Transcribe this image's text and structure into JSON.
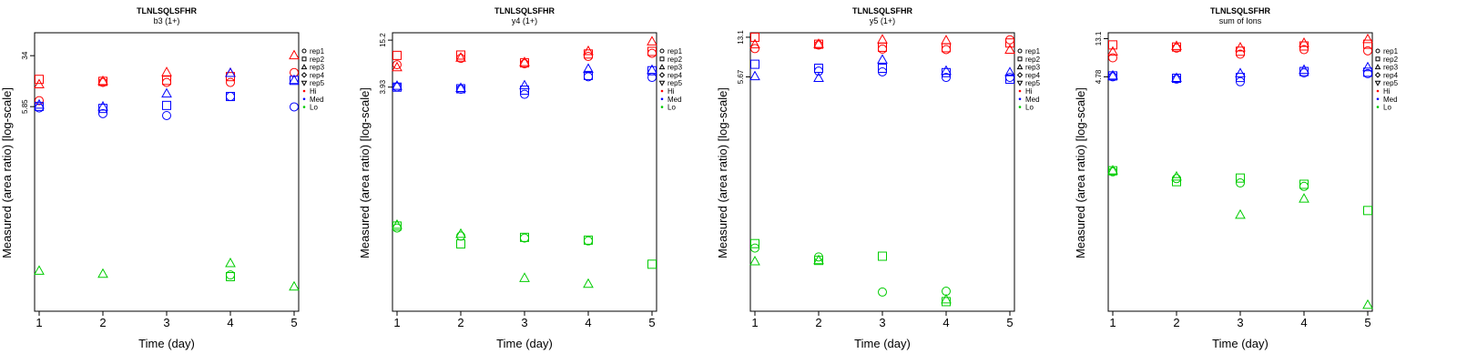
{
  "chart_data": [
    {
      "type": "scatter",
      "title": "TLNLSQLSFHR",
      "subtitle": "b3 (1+)",
      "xlabel": "Time (day)",
      "ylabel": "Measured (area ratio) [log-scale]",
      "x_ticks": [
        "1",
        "2",
        "3",
        "4",
        "5"
      ],
      "y_ticks": [
        {
          "label": "34",
          "value": 34
        },
        {
          "label": "5.85",
          "value": 5.85
        }
      ],
      "log_scale_y": true,
      "ylim": [
        0.005,
        75
      ],
      "grid": false,
      "legend_position": "right",
      "legend": {
        "shapes": [
          {
            "label": "rep1",
            "marker": "circle"
          },
          {
            "label": "rep2",
            "marker": "square"
          },
          {
            "label": "rep3",
            "marker": "triangle-up"
          },
          {
            "label": "rep4",
            "marker": "diamond"
          },
          {
            "label": "rep5",
            "marker": "triangle-down"
          }
        ],
        "groups": [
          {
            "label": "Hi",
            "color": "#ff0000"
          },
          {
            "label": "Med",
            "color": "#0000ff"
          },
          {
            "label": "Lo",
            "color": "#00cc00"
          }
        ]
      },
      "series": [
        {
          "group": "Hi",
          "rep": "rep1",
          "x": [
            1,
            2,
            3,
            4,
            5
          ],
          "y": [
            7.2,
            13.5,
            13.5,
            13.5,
            19
          ]
        },
        {
          "group": "Hi",
          "rep": "rep2",
          "x": [
            1,
            2,
            3,
            4,
            5
          ],
          "y": [
            15,
            14,
            14.5,
            16.5,
            null
          ]
        },
        {
          "group": "Hi",
          "rep": "rep3",
          "x": [
            1,
            2,
            3,
            4,
            5
          ],
          "y": [
            12.5,
            14,
            19,
            18.5,
            34
          ]
        },
        {
          "group": "Med",
          "rep": "rep1",
          "x": [
            1,
            2,
            3,
            4,
            5
          ],
          "y": [
            5.6,
            4.6,
            4.3,
            8.3,
            5.8
          ]
        },
        {
          "group": "Med",
          "rep": "rep2",
          "x": [
            1,
            2,
            3,
            4,
            5
          ],
          "y": [
            5.9,
            5.5,
            6.1,
            8.3,
            14.5
          ]
        },
        {
          "group": "Med",
          "rep": "rep3",
          "x": [
            1,
            2,
            3,
            4,
            5
          ],
          "y": [
            6.2,
            5.8,
            9.1,
            18.5,
            14.5
          ]
        },
        {
          "group": "Lo",
          "rep": "rep1",
          "x": [
            1,
            2,
            3,
            4,
            5
          ],
          "y": [
            null,
            null,
            null,
            0.0175,
            null
          ]
        },
        {
          "group": "Lo",
          "rep": "rep2",
          "x": [
            1,
            2,
            3,
            4,
            5
          ],
          "y": [
            null,
            null,
            null,
            0.0165,
            null
          ]
        },
        {
          "group": "Lo",
          "rep": "rep3",
          "x": [
            1,
            2,
            3,
            4,
            5
          ],
          "y": [
            0.02,
            0.018,
            null,
            0.026,
            0.0116
          ]
        }
      ]
    },
    {
      "type": "scatter",
      "title": "TLNLSQLSFHR",
      "subtitle": "y4 (1+)",
      "xlabel": "Time (day)",
      "ylabel": "Measured (area ratio) [log-scale]",
      "x_ticks": [
        "1",
        "2",
        "3",
        "4",
        "5"
      ],
      "y_ticks": [
        {
          "label": "15.2",
          "value": 15.2
        },
        {
          "label": "3.93",
          "value": 3.93
        }
      ],
      "log_scale_y": true,
      "ylim": [
        0.0062,
        18.8
      ],
      "grid": false,
      "legend_position": "right",
      "legend": {
        "shapes": [
          {
            "label": "rep1",
            "marker": "circle"
          },
          {
            "label": "rep2",
            "marker": "square"
          },
          {
            "label": "rep3",
            "marker": "triangle-up"
          },
          {
            "label": "rep4",
            "marker": "diamond"
          },
          {
            "label": "rep5",
            "marker": "triangle-down"
          }
        ],
        "groups": [
          {
            "label": "Hi",
            "color": "#ff0000"
          },
          {
            "label": "Med",
            "color": "#0000ff"
          },
          {
            "label": "Lo",
            "color": "#00cc00"
          }
        ]
      },
      "series": [
        {
          "group": "Hi",
          "rep": "rep1",
          "x": [
            1,
            2,
            3,
            4,
            5
          ],
          "y": [
            7.5,
            9,
            7.7,
            9.5,
            10.4
          ]
        },
        {
          "group": "Hi",
          "rep": "rep2",
          "x": [
            1,
            2,
            3,
            4,
            5
          ],
          "y": [
            9.8,
            9.9,
            7.9,
            10.2,
            11
          ]
        },
        {
          "group": "Hi",
          "rep": "rep3",
          "x": [
            1,
            2,
            3,
            4,
            5
          ],
          "y": [
            6.9,
            9.1,
            8,
            11,
            14.5
          ]
        },
        {
          "group": "Med",
          "rep": "rep1",
          "x": [
            1,
            2,
            3,
            4,
            5
          ],
          "y": [
            3.95,
            3.7,
            3.2,
            5.3,
            5.2
          ]
        },
        {
          "group": "Med",
          "rep": "rep2",
          "x": [
            1,
            2,
            3,
            4,
            5
          ],
          "y": [
            3.93,
            3.75,
            3.6,
            5.5,
            6.3
          ]
        },
        {
          "group": "Med",
          "rep": "rep3",
          "x": [
            1,
            2,
            3,
            4,
            5
          ],
          "y": [
            4.05,
            3.8,
            4.1,
            6.6,
            6.4
          ]
        },
        {
          "group": "Lo",
          "rep": "rep1",
          "x": [
            1,
            2,
            3,
            4,
            5
          ],
          "y": [
            0.068,
            0.054,
            0.051,
            0.047,
            null
          ]
        },
        {
          "group": "Lo",
          "rep": "rep2",
          "x": [
            1,
            2,
            3,
            4,
            5
          ],
          "y": [
            0.072,
            0.043,
            0.052,
            0.048,
            0.024
          ]
        },
        {
          "group": "Lo",
          "rep": "rep3",
          "x": [
            1,
            2,
            3,
            4,
            5
          ],
          "y": [
            0.074,
            0.057,
            0.016,
            0.0135,
            null
          ]
        }
      ]
    },
    {
      "type": "scatter",
      "title": "TLNLSQLSFHR",
      "subtitle": "y5 (1+)",
      "xlabel": "Time (day)",
      "ylabel": "Measured (area ratio) [log-scale]",
      "x_ticks": [
        "1",
        "2",
        "3",
        "4",
        "5"
      ],
      "y_ticks": [
        {
          "label": "13.1",
          "value": 13.1
        },
        {
          "label": "5.67",
          "value": 5.67
        }
      ],
      "log_scale_y": true,
      "ylim": [
        0.04,
        14.4
      ],
      "grid": false,
      "legend_position": "right",
      "legend": {
        "shapes": [
          {
            "label": "rep1",
            "marker": "circle"
          },
          {
            "label": "rep2",
            "marker": "square"
          },
          {
            "label": "rep3",
            "marker": "triangle-up"
          },
          {
            "label": "rep4",
            "marker": "diamond"
          },
          {
            "label": "rep5",
            "marker": "triangle-down"
          }
        ],
        "groups": [
          {
            "label": "Hi",
            "color": "#ff0000"
          },
          {
            "label": "Med",
            "color": "#0000ff"
          },
          {
            "label": "Lo",
            "color": "#00cc00"
          }
        ]
      },
      "series": [
        {
          "group": "Hi",
          "rep": "rep1",
          "x": [
            1,
            2,
            3,
            4,
            5
          ],
          "y": [
            10.3,
            11.1,
            10.2,
            10.1,
            12.4
          ]
        },
        {
          "group": "Hi",
          "rep": "rep2",
          "x": [
            1,
            2,
            3,
            4,
            5
          ],
          "y": [
            13.1,
            11.3,
            10.6,
            10.5,
            11.6
          ]
        },
        {
          "group": "Hi",
          "rep": "rep3",
          "x": [
            1,
            2,
            3,
            4,
            5
          ],
          "y": [
            11.2,
            11.3,
            12.4,
            12.2,
            10
          ]
        },
        {
          "group": "Med",
          "rep": "rep1",
          "x": [
            1,
            2,
            3,
            4,
            5
          ],
          "y": [
            null,
            6.4,
            6.3,
            5.6,
            5.6
          ]
        },
        {
          "group": "Med",
          "rep": "rep2",
          "x": [
            1,
            2,
            3,
            4,
            5
          ],
          "y": [
            7.4,
            6.8,
            6.8,
            6.2,
            5.4
          ]
        },
        {
          "group": "Med",
          "rep": "rep3",
          "x": [
            1,
            2,
            3,
            4,
            5
          ],
          "y": [
            5.7,
            5.5,
            8.1,
            6.4,
            6.2
          ]
        },
        {
          "group": "Lo",
          "rep": "rep1",
          "x": [
            1,
            2,
            3,
            4,
            5
          ],
          "y": [
            0.152,
            0.126,
            0.06,
            0.061,
            null
          ]
        },
        {
          "group": "Lo",
          "rep": "rep2",
          "x": [
            1,
            2,
            3,
            4,
            5
          ],
          "y": [
            0.167,
            0.117,
            0.128,
            0.049,
            null
          ]
        },
        {
          "group": "Lo",
          "rep": "rep3",
          "x": [
            1,
            2,
            3,
            4,
            5
          ],
          "y": [
            0.114,
            0.117,
            null,
            0.051,
            null
          ]
        }
      ]
    },
    {
      "type": "scatter",
      "title": "TLNLSQLSFHR",
      "subtitle": "sum of Ions",
      "xlabel": "Time (day)",
      "ylabel": "Measured (area ratio) [log-scale]",
      "x_ticks": [
        "1",
        "2",
        "3",
        "4",
        "5"
      ],
      "y_ticks": [
        {
          "label": "13.1",
          "value": 13.1
        },
        {
          "label": "4.78",
          "value": 4.78
        }
      ],
      "log_scale_y": true,
      "ylim": [
        0.0098,
        15.3
      ],
      "grid": false,
      "legend_position": "right",
      "legend": {
        "shapes": [
          {
            "label": "rep1",
            "marker": "circle"
          },
          {
            "label": "rep2",
            "marker": "square"
          },
          {
            "label": "rep3",
            "marker": "triangle-up"
          },
          {
            "label": "rep4",
            "marker": "diamond"
          },
          {
            "label": "rep5",
            "marker": "triangle-down"
          }
        ],
        "groups": [
          {
            "label": "Hi",
            "color": "#ff0000"
          },
          {
            "label": "Med",
            "color": "#0000ff"
          },
          {
            "label": "Lo",
            "color": "#00cc00"
          }
        ]
      },
      "series": [
        {
          "group": "Hi",
          "rep": "rep1",
          "x": [
            1,
            2,
            3,
            4,
            5
          ],
          "y": [
            7.9,
            10.2,
            8.7,
            9.8,
            9.5
          ]
        },
        {
          "group": "Hi",
          "rep": "rep2",
          "x": [
            1,
            2,
            3,
            4,
            5
          ],
          "y": [
            11.1,
            10.5,
            9.4,
            10.8,
            11.3
          ]
        },
        {
          "group": "Hi",
          "rep": "rep3",
          "x": [
            1,
            2,
            3,
            4,
            5
          ],
          "y": [
            9.2,
            10.7,
            10.3,
            11.6,
            12.8
          ]
        },
        {
          "group": "Med",
          "rep": "rep1",
          "x": [
            1,
            2,
            3,
            4,
            5
          ],
          "y": [
            4.78,
            4.5,
            4.2,
            5.3,
            5.2
          ]
        },
        {
          "group": "Med",
          "rep": "rep2",
          "x": [
            1,
            2,
            3,
            4,
            5
          ],
          "y": [
            4.9,
            4.6,
            4.7,
            5.5,
            5.4
          ]
        },
        {
          "group": "Med",
          "rep": "rep3",
          "x": [
            1,
            2,
            3,
            4,
            5
          ],
          "y": [
            4.9,
            4.6,
            5.2,
            5.7,
            6.1
          ]
        },
        {
          "group": "Lo",
          "rep": "rep1",
          "x": [
            1,
            2,
            3,
            4,
            5
          ],
          "y": [
            0.39,
            0.325,
            0.29,
            0.265,
            null
          ]
        },
        {
          "group": "Lo",
          "rep": "rep2",
          "x": [
            1,
            2,
            3,
            4,
            5
          ],
          "y": [
            0.4,
            0.3,
            0.33,
            0.28,
            0.14
          ]
        },
        {
          "group": "Lo",
          "rep": "rep3",
          "x": [
            1,
            2,
            3,
            4,
            5
          ],
          "y": [
            0.4,
            0.34,
            0.124,
            0.19,
            0.0115
          ]
        }
      ]
    }
  ]
}
